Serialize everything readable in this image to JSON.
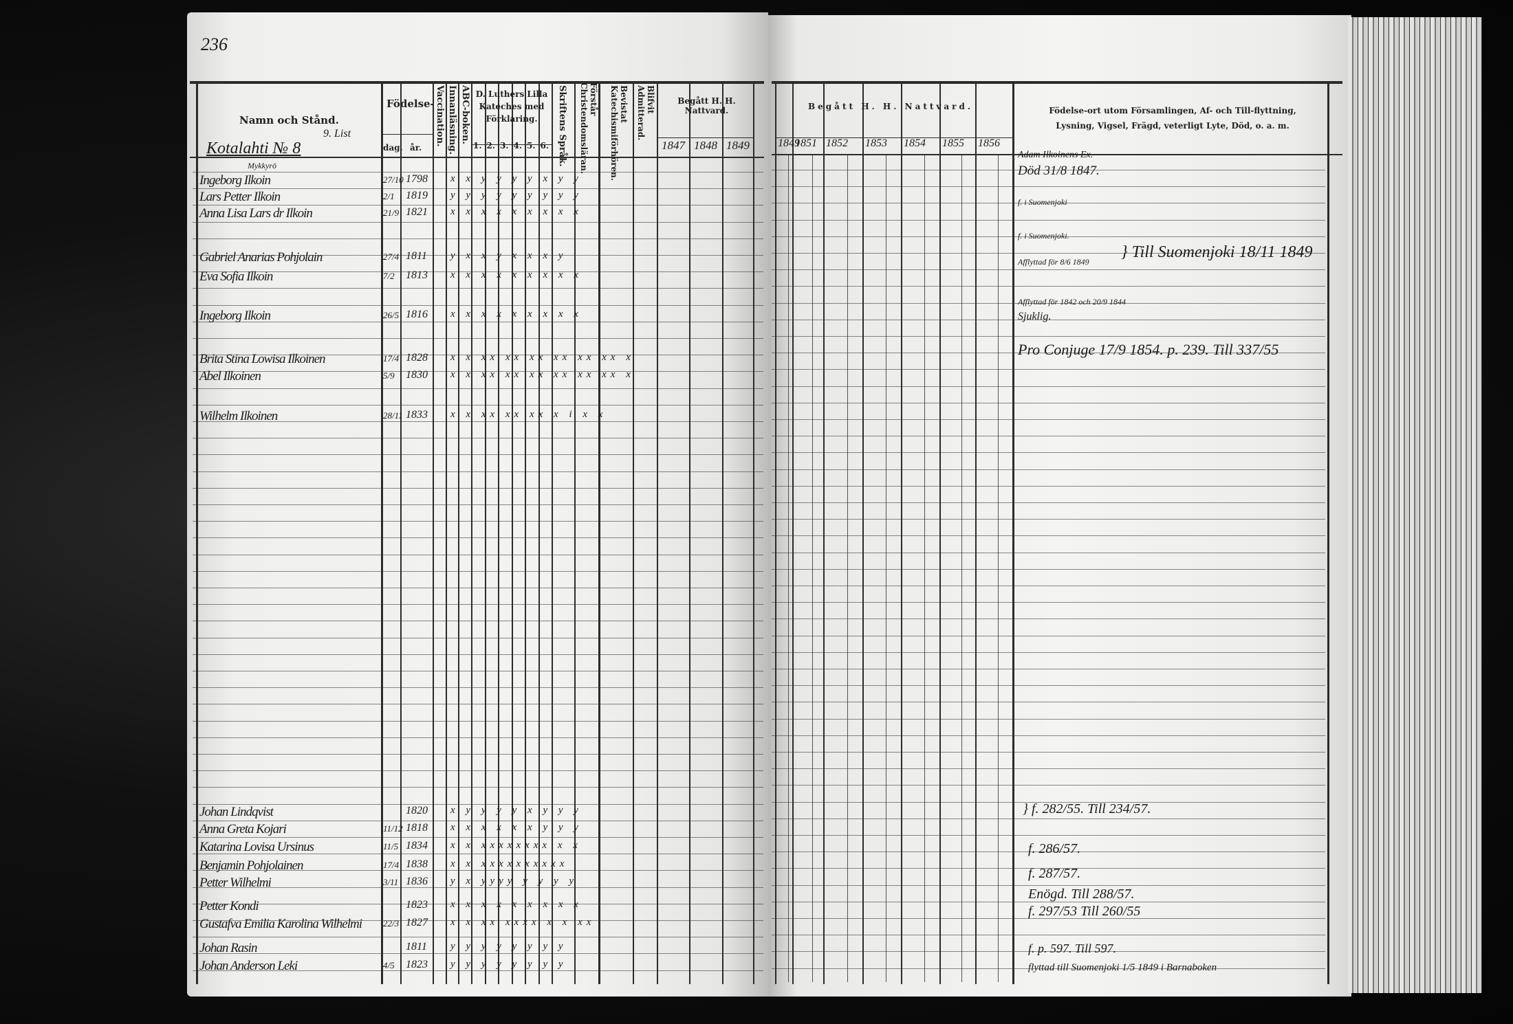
{
  "page_number": "236",
  "left_header": {
    "name_col": "Namn och Stånd.",
    "birth": "Födelse-",
    "birth_day": "dag.",
    "birth_year": "år.",
    "vaccination": "Vaccination.",
    "reading": "Innanläsning.",
    "abc": "ABC-boken.",
    "catechism": "D. Luthers Lilla Kateches med Förklaring.",
    "catechism_parts": [
      "1.",
      "2.",
      "3.",
      "4.",
      "5.",
      "6."
    ],
    "scripture": "Skriftens Språk.",
    "understands": "Förstår Christendomsläran.",
    "attended": "Bevistat Katechismiförhören.",
    "admitted": "Blifvit Admitterad.",
    "communion": "Begått H. H. Nattvard.",
    "years": [
      "1847",
      "1848",
      "1849"
    ]
  },
  "right_header": {
    "communion": "Begått H. H. Nattvard.",
    "years": [
      "1849",
      "1851",
      "1852",
      "1853",
      "1854",
      "1855",
      "1856"
    ],
    "remarks": "Födelse-ort utom Församlingen, Af- och Till-flyttning, Lysning, Vigsel, Frägd, veterligt Lyte, Död, o. a. m."
  },
  "household": {
    "list": "9. List",
    "place": "Kotalahti № 8",
    "village": "Mykkyrö"
  },
  "entries_top": [
    {
      "name": "Ingeborg Ilkoin",
      "day": "27/10",
      "year": "1798",
      "marks": "x x y y y y x y y"
    },
    {
      "name": "Lars Petter Ilkoin",
      "day": "2/1",
      "year": "1819",
      "marks": "y y y y y y y y y"
    },
    {
      "name": "Anna Lisa Lars dr Ilkoin",
      "day": "21/9",
      "year": "1821",
      "marks": "x x x x x x x x x"
    },
    {
      "name": "Gabriel Anarias Pohjolain",
      "day": "27/4",
      "year": "1811",
      "marks": "y x x y x x x y"
    },
    {
      "name": "Eva Sofia Ilkoin",
      "day": "7/2",
      "year": "1813",
      "marks": "x x x x x x x x x"
    },
    {
      "name": "Ingeborg Ilkoin",
      "day": "26/5",
      "year": "1816",
      "marks": "x x x x x x x x x"
    },
    {
      "name": "Brita Stina Lowisa Ilkoinen",
      "day": "17/4",
      "year": "1828",
      "marks": "x x xx xx xx xx xx xx x"
    },
    {
      "name": "Abel Ilkoinen",
      "day": "5/9",
      "year": "1830",
      "marks": "x x xx xx xx xx xx xx x"
    },
    {
      "name": "Wilhelm Ilkoinen",
      "day": "28/11",
      "year": "1833",
      "marks": "x x xx xx xx x i x x"
    }
  ],
  "entries_bottom": [
    {
      "name": "Johan Lindqvist",
      "day": "",
      "year": "1820",
      "marks": "x y y y y x y y y"
    },
    {
      "name": "Anna Greta Kojari",
      "day": "11/12",
      "year": "1818",
      "marks": "x x x x x x y y y"
    },
    {
      "name": "Katarina Lovisa Ursinus",
      "day": "11/5",
      "year": "1834",
      "marks": "x x xxxxxxxx x x"
    },
    {
      "name": "Benjamin Pohjolainen",
      "day": "17/4",
      "year": "1838",
      "marks": "x x xxxxxxxxxx"
    },
    {
      "name": "Petter Wilhelmi",
      "day": "3/11",
      "year": "1836",
      "marks": "y x yyyy y y y y"
    },
    {
      "name": "Petter Kondi",
      "day": "",
      "year": "1823",
      "marks": "x x x x x x x x x"
    },
    {
      "name": "Gustafva Emilia Karolina Wilhelmi",
      "day": "22/3",
      "year": "1827",
      "marks": "x x xx xxxx x x xx"
    },
    {
      "name": "Johan Rasin",
      "day": "",
      "year": "1811",
      "marks": "y y y y y y y y"
    },
    {
      "name": "Johan Anderson Leki",
      "day": "4/5",
      "year": "1823",
      "marks": "y y y y y y y y"
    }
  ],
  "remarks": [
    "Adam Ilkoinens Ex.",
    "Död 31/8 1847.",
    "f. i Suomenjoki",
    "f. i Suomenjoki.",
    "Afflyttad för 8/6 1849",
    "} Till Suomenjoki 18/11 1849",
    "Afflyttad för 1842 och 20/9 1844",
    "Sjuklig.",
    "Pro Conjuge 17/9 1854. p. 239. Till 337/55",
    "} f. 282/55. Till 234/57.",
    "f. 286/57.",
    "f. 287/57.",
    "Enögd. Till 288/57.",
    "f. 297/53 Till 260/55",
    "f. p. 597. Till 597.",
    "flyttad till Suomenjoki 1/5 1849 i Barnaboken"
  ]
}
